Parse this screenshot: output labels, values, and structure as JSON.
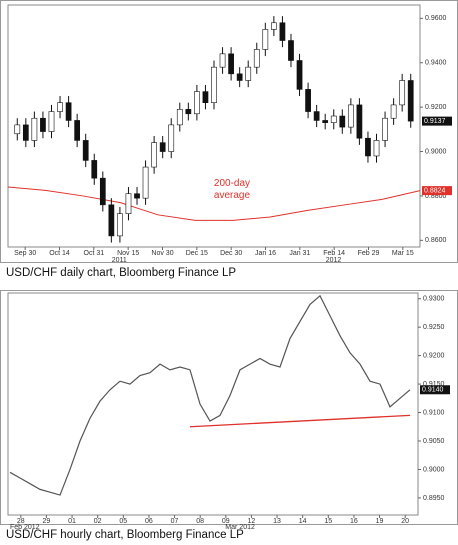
{
  "chart_data": [
    {
      "type": "candlestick",
      "caption": "USD/CHF daily chart, Bloomberg Finance LP",
      "ylim": [
        0.857,
        0.966
      ],
      "yticks": [
        {
          "value": 0.96,
          "label": "0.9600"
        },
        {
          "value": 0.94,
          "label": "0.9400"
        },
        {
          "value": 0.92,
          "label": "0.9200"
        },
        {
          "value": 0.9,
          "label": "0.9000"
        },
        {
          "value": 0.88,
          "label": "0.8800"
        },
        {
          "value": 0.86,
          "label": "0.8600"
        }
      ],
      "xticks": [
        "Sep 30",
        "Oct 14",
        "Oct 31",
        "Nov 15",
        "Nov 30",
        "Dec 15",
        "Dec 30",
        "Jan 16",
        "Jan 31",
        "Feb 14",
        "Feb 29",
        "Mar 15"
      ],
      "years": [
        "2011",
        "2012"
      ],
      "open": [
        0.908,
        0.912,
        0.905,
        0.915,
        0.909,
        0.918,
        0.922,
        0.914,
        0.905,
        0.896,
        0.888,
        0.876,
        0.862,
        0.872,
        0.881,
        0.879,
        0.893,
        0.904,
        0.9,
        0.912,
        0.919,
        0.917,
        0.927,
        0.922,
        0.938,
        0.944,
        0.935,
        0.932,
        0.938,
        0.946,
        0.955,
        0.958,
        0.95,
        0.941,
        0.928,
        0.918,
        0.914,
        0.913,
        0.916,
        0.911,
        0.921,
        0.906,
        0.898,
        0.905,
        0.915,
        0.921,
        0.932
      ],
      "high": [
        0.915,
        0.915,
        0.918,
        0.918,
        0.921,
        0.925,
        0.925,
        0.917,
        0.908,
        0.899,
        0.891,
        0.879,
        0.875,
        0.884,
        0.884,
        0.896,
        0.907,
        0.907,
        0.915,
        0.922,
        0.922,
        0.93,
        0.93,
        0.941,
        0.947,
        0.947,
        0.938,
        0.941,
        0.949,
        0.958,
        0.961,
        0.961,
        0.953,
        0.944,
        0.931,
        0.921,
        0.917,
        0.919,
        0.919,
        0.924,
        0.924,
        0.909,
        0.908,
        0.918,
        0.924,
        0.935,
        0.935
      ],
      "low": [
        0.905,
        0.902,
        0.902,
        0.906,
        0.906,
        0.915,
        0.911,
        0.902,
        0.893,
        0.885,
        0.873,
        0.859,
        0.859,
        0.869,
        0.876,
        0.876,
        0.89,
        0.897,
        0.897,
        0.909,
        0.914,
        0.914,
        0.919,
        0.919,
        0.935,
        0.932,
        0.929,
        0.929,
        0.935,
        0.943,
        0.952,
        0.947,
        0.938,
        0.925,
        0.915,
        0.911,
        0.91,
        0.91,
        0.908,
        0.908,
        0.903,
        0.895,
        0.895,
        0.902,
        0.912,
        0.918,
        0.9107
      ],
      "close": [
        0.912,
        0.905,
        0.915,
        0.909,
        0.918,
        0.922,
        0.914,
        0.905,
        0.896,
        0.888,
        0.876,
        0.862,
        0.872,
        0.881,
        0.879,
        0.893,
        0.904,
        0.9,
        0.912,
        0.919,
        0.917,
        0.927,
        0.922,
        0.938,
        0.944,
        0.935,
        0.932,
        0.938,
        0.946,
        0.955,
        0.958,
        0.95,
        0.941,
        0.928,
        0.918,
        0.914,
        0.913,
        0.916,
        0.911,
        0.921,
        0.906,
        0.898,
        0.905,
        0.915,
        0.921,
        0.932,
        0.9137
      ],
      "last_value": {
        "value": 0.9137,
        "label": "0.9137"
      },
      "average": {
        "name": "200-day average",
        "color": "#e0302a",
        "values": [
          0.884,
          0.8825,
          0.88,
          0.877,
          0.8715,
          0.869,
          0.869,
          0.8705,
          0.8735,
          0.876,
          0.8785,
          0.8824
        ],
        "last_value": {
          "value": 0.8824,
          "label": "0.8824"
        }
      }
    },
    {
      "type": "line",
      "caption": "USD/CHF hourly chart, Bloomberg Finance LP",
      "color": "#555555",
      "ylim": [
        0.892,
        0.931
      ],
      "yticks": [
        {
          "value": 0.93,
          "label": "0.9300"
        },
        {
          "value": 0.925,
          "label": "0.9250"
        },
        {
          "value": 0.92,
          "label": "0.9200"
        },
        {
          "value": 0.915,
          "label": "0.9150"
        },
        {
          "value": 0.91,
          "label": "0.9100"
        },
        {
          "value": 0.905,
          "label": "0.9050"
        },
        {
          "value": 0.9,
          "label": "0.9000"
        },
        {
          "value": 0.895,
          "label": "0.8950"
        }
      ],
      "xticks": [
        "28",
        "29",
        "01",
        "02",
        "05",
        "06",
        "07",
        "08",
        "09",
        "12",
        "13",
        "14",
        "15",
        "16",
        "19",
        "20"
      ],
      "months": [
        "Feb 2012",
        "Mar 2012"
      ],
      "values": [
        0.8995,
        0.8985,
        0.8975,
        0.8965,
        0.896,
        0.8955,
        0.9,
        0.905,
        0.909,
        0.912,
        0.914,
        0.9155,
        0.915,
        0.9165,
        0.917,
        0.9185,
        0.9175,
        0.918,
        0.9175,
        0.9115,
        0.9085,
        0.9095,
        0.913,
        0.9175,
        0.9185,
        0.9195,
        0.9185,
        0.918,
        0.923,
        0.926,
        0.929,
        0.9305,
        0.927,
        0.9235,
        0.9205,
        0.9185,
        0.9155,
        0.915,
        0.911,
        0.9125,
        0.914
      ],
      "last_value": {
        "value": 0.914,
        "label": "0.9140"
      },
      "trendline": {
        "color": "#e0302a",
        "values": [
          0.9075,
          0.9095
        ]
      }
    }
  ]
}
